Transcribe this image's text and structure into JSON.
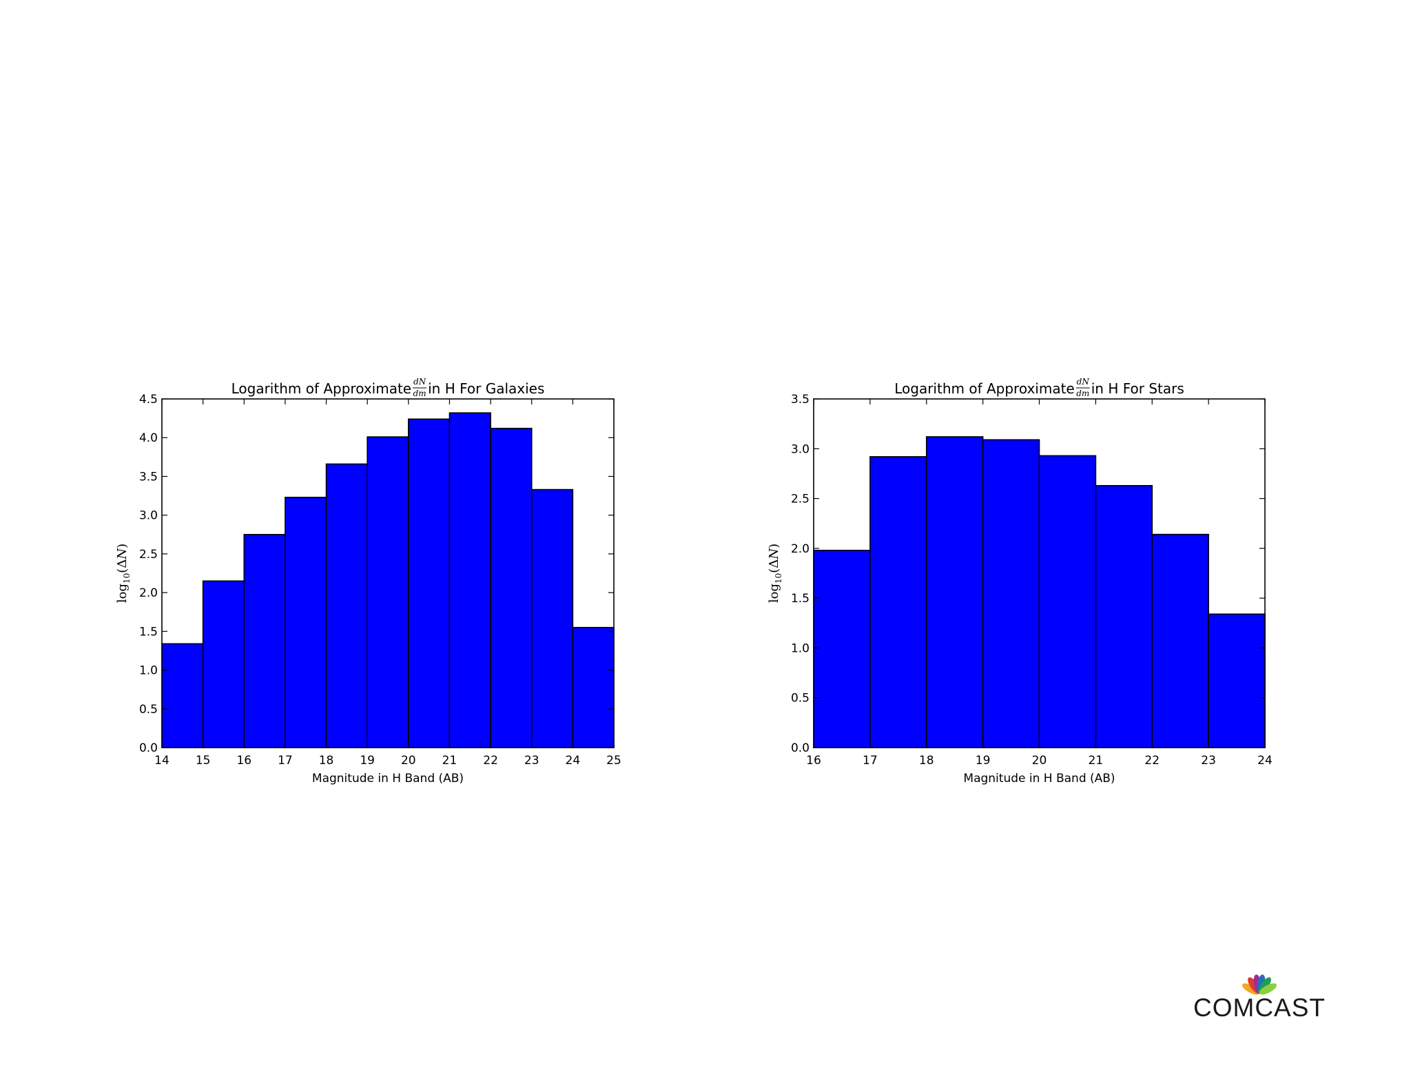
{
  "logo": {
    "brand_text": "COMCAST",
    "colors": [
      "#f5a623",
      "#e23b2e",
      "#9b2f8f",
      "#2a6ebb",
      "#1f9d55",
      "#8ccf3f"
    ],
    "text_color": "#1a1a1a"
  },
  "chart_data": [
    {
      "type": "bar",
      "title_parts": [
        "Logarithm of Approximate ",
        "dN",
        "dm",
        " in H For Galaxies"
      ],
      "xlabel": "Magnitude in H Band (AB)",
      "ylabel": "log10(ΔN)",
      "ylabel_parts": [
        "log",
        "10",
        "(Δ",
        "N",
        ")"
      ],
      "bin_edges": [
        14,
        15,
        16,
        17,
        18,
        19,
        20,
        21,
        22,
        23,
        24,
        25
      ],
      "values": [
        1.34,
        2.15,
        2.75,
        3.23,
        3.66,
        4.01,
        4.24,
        4.32,
        4.12,
        3.33,
        1.55
      ],
      "xlim": [
        14,
        25
      ],
      "ylim": [
        0,
        4.5
      ],
      "xticks": [
        "14",
        "15",
        "16",
        "17",
        "18",
        "19",
        "20",
        "21",
        "22",
        "23",
        "24",
        "25"
      ],
      "yticks": [
        "0.0",
        "0.5",
        "1.0",
        "1.5",
        "2.0",
        "2.5",
        "3.0",
        "3.5",
        "4.0",
        "4.5"
      ],
      "bar_color": "#0000ff",
      "edge_color": "#000000",
      "grid": false
    },
    {
      "type": "bar",
      "title_parts": [
        "Logarithm of Approximate ",
        "dN",
        "dm",
        " in H For Stars"
      ],
      "xlabel": "Magnitude in H Band (AB)",
      "ylabel": "log10(ΔN)",
      "ylabel_parts": [
        "log",
        "10",
        "(Δ",
        "N",
        ")"
      ],
      "bin_edges": [
        16,
        17,
        18,
        19,
        20,
        21,
        22,
        23,
        24
      ],
      "values": [
        1.98,
        2.92,
        3.12,
        3.09,
        2.93,
        2.63,
        2.14,
        1.34
      ],
      "xlim": [
        16,
        24
      ],
      "ylim": [
        0,
        3.5
      ],
      "xticks": [
        "16",
        "17",
        "18",
        "19",
        "20",
        "21",
        "22",
        "23",
        "24"
      ],
      "yticks": [
        "0.0",
        "0.5",
        "1.0",
        "1.5",
        "2.0",
        "2.5",
        "3.0",
        "3.5"
      ],
      "bar_color": "#0000ff",
      "edge_color": "#000000",
      "grid": false
    }
  ]
}
